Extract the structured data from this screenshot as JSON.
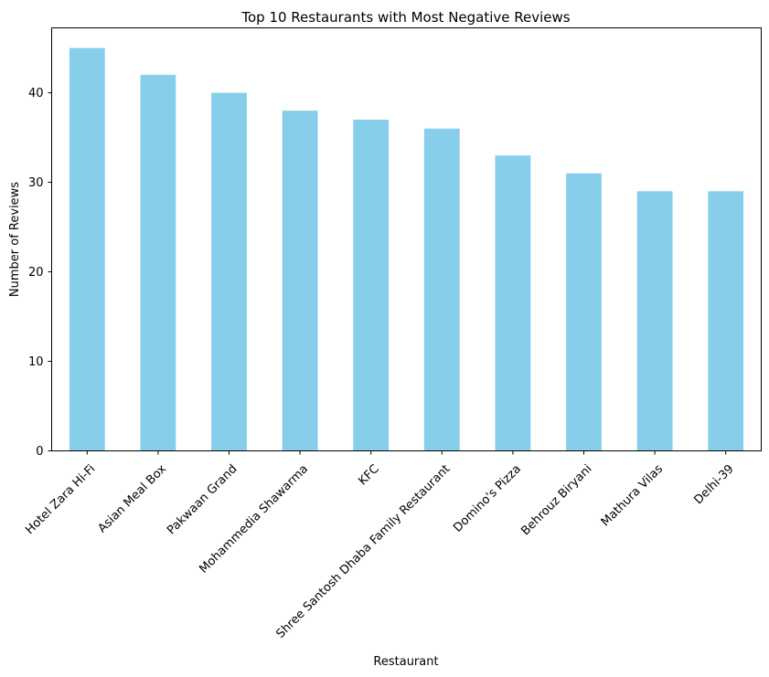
{
  "chart_data": {
    "type": "bar",
    "title": "Top 10 Restaurants with Most Negative Reviews",
    "xlabel": "Restaurant",
    "ylabel": "Number of Reviews",
    "categories": [
      "Hotel Zara Hi-Fi",
      "Asian Meal Box",
      "Pakwaan Grand",
      "Mohammedia Shawarma",
      "KFC",
      "Shree Santosh Dhaba Family Restaurant",
      "Domino's Pizza",
      "Behrouz Biryani",
      "Mathura Vilas",
      "Delhi-39"
    ],
    "values": [
      45,
      42,
      40,
      38,
      37,
      36,
      33,
      31,
      29,
      29
    ],
    "ylim": [
      0,
      47.25
    ],
    "yticks": [
      0,
      10,
      20,
      30,
      40
    ],
    "bar_color": "#87ceeb",
    "grid": false,
    "legend": "none"
  }
}
